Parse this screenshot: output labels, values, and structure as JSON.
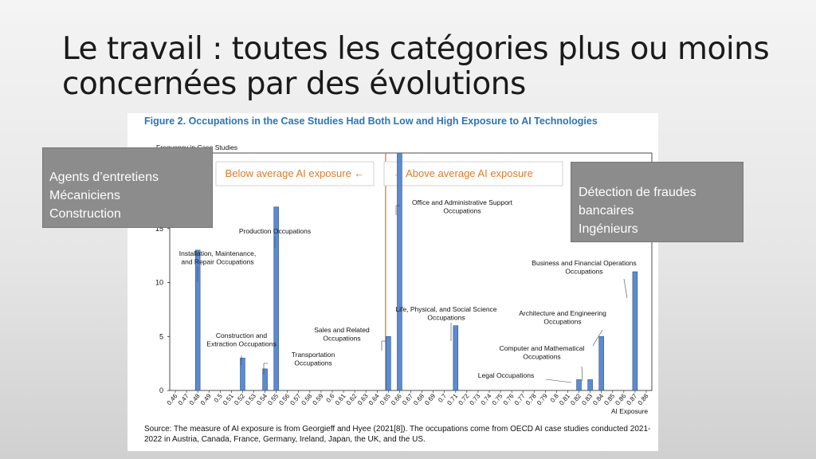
{
  "slide": {
    "title_line1": "Le travail : toutes les catégories plus ou moins",
    "title_line2": "concernées par des évolutions"
  },
  "left_box": {
    "lines": [
      "Agents d’entretiens",
      "Mécaniciens",
      "Construction"
    ]
  },
  "right_box": {
    "lines": [
      "Détection de fraudes",
      "bancaires",
      "Ingénieurs"
    ]
  },
  "figure": {
    "title": "Figure 2. Occupations in the Case Studies Had Both Low and High Exposure to AI Technologies",
    "source_line1": "Source: The measure of AI exposure is from Georgieff and Hyee (2021[8]). The occupations come from OECD AI case studies conducted 2021-",
    "source_line2": "2022 in Austria, Canada, France, Germany, Ireland, Japan, the UK, and the US."
  },
  "colors": {
    "bar": "#5b8bd0",
    "divider": "#e07b2a",
    "annotation": "#e07b2a",
    "title": "#2e74b5",
    "overlay": "#8c8c8c"
  },
  "chart_data": {
    "type": "bar",
    "ylabel": "Frequency in Case Studies",
    "xlabel": "AI Exposure",
    "ylim": [
      0,
      22
    ],
    "yticks": [
      0,
      5,
      10,
      15
    ],
    "grid": false,
    "categories": [
      "0.46",
      "0.47",
      "0.48",
      "0.49",
      "0.5",
      "0.51",
      "0.52",
      "0.53",
      "0.54",
      "0.55",
      "0.56",
      "0.57",
      "0.58",
      "0.59",
      "0.6",
      "0.61",
      "0.62",
      "0.63",
      "0.64",
      "0.65",
      "0.66",
      "0.67",
      "0.68",
      "0.69",
      "0.7",
      "0.71",
      "0.72",
      "0.73",
      "0.74",
      "0.75",
      "0.76",
      "0.77",
      "0.78",
      "0.79",
      "0.8",
      "0.81",
      "0.82",
      "0.83",
      "0.84",
      "0.85",
      "0.86",
      "0.87",
      "0.88"
    ],
    "values": [
      0,
      0,
      13,
      0,
      0,
      0,
      3,
      0,
      2,
      17,
      0,
      0,
      0,
      0,
      0,
      0,
      0,
      0,
      0,
      5,
      22,
      0,
      0,
      0,
      0,
      6,
      0,
      0,
      0,
      0,
      0,
      0,
      0,
      0,
      0,
      0,
      1,
      1,
      5,
      0,
      0,
      11,
      0
    ],
    "divider_at": "0.65",
    "region_labels": {
      "below": "Below average AI exposure ←",
      "above": "→ Above average AI exposure"
    },
    "annotations": [
      {
        "text": [
          "Installation, Maintenance,",
          "and Repair Occupations"
        ],
        "category": "0.48"
      },
      {
        "text": [
          "Construction and",
          "Extraction Occupations"
        ],
        "category": "0.52"
      },
      {
        "text": [
          "Production Occupations"
        ],
        "category": "0.55"
      },
      {
        "text": [
          "Transportation",
          "Occupations"
        ],
        "category": "0.54"
      },
      {
        "text": [
          "Sales and Related",
          "Occupations"
        ],
        "category": "0.65"
      },
      {
        "text": [
          "Office and Administrative Support",
          "Occupations"
        ],
        "category": "0.66"
      },
      {
        "text": [
          "Life, Physical, and Social Science",
          "Occupations"
        ],
        "category": "0.71"
      },
      {
        "text": [
          "Legal Occupations"
        ],
        "category": "0.82"
      },
      {
        "text": [
          "Computer and Mathematical",
          "Occupations"
        ],
        "category": "0.83"
      },
      {
        "text": [
          "Architecture and Engineering",
          "Occupations"
        ],
        "category": "0.84"
      },
      {
        "text": [
          "Business and Financial Operations",
          "Occupations"
        ],
        "category": "0.87"
      }
    ]
  }
}
